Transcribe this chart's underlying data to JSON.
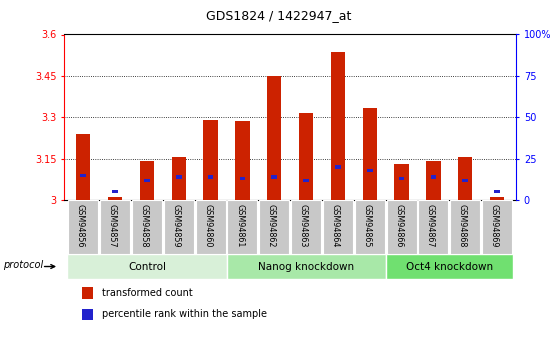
{
  "title": "GDS1824 / 1422947_at",
  "samples": [
    "GSM94856",
    "GSM94857",
    "GSM94858",
    "GSM94859",
    "GSM94860",
    "GSM94861",
    "GSM94862",
    "GSM94863",
    "GSM94864",
    "GSM94865",
    "GSM94866",
    "GSM94867",
    "GSM94868",
    "GSM94869"
  ],
  "transformed_count": [
    3.24,
    3.01,
    3.14,
    3.155,
    3.29,
    3.285,
    3.45,
    3.315,
    3.535,
    3.335,
    3.13,
    3.14,
    3.155,
    3.01
  ],
  "percentile_rank_pct": [
    15,
    5,
    12,
    14,
    14,
    13,
    14,
    12,
    20,
    18,
    13,
    14,
    12,
    5
  ],
  "bar_color_red": "#cc2200",
  "bar_color_blue": "#2222cc",
  "ylim_left": [
    3.0,
    3.6
  ],
  "ylim_right": [
    0,
    100
  ],
  "yticks_left": [
    3.0,
    3.15,
    3.3,
    3.45,
    3.6
  ],
  "yticks_right": [
    0,
    25,
    50,
    75,
    100
  ],
  "ytick_labels_left": [
    "3",
    "3.15",
    "3.3",
    "3.45",
    "3.6"
  ],
  "ytick_labels_right": [
    "0",
    "25",
    "50",
    "75",
    "100%"
  ],
  "groups": [
    {
      "label": "Control",
      "start": 0,
      "end": 4,
      "color": "#d8f0d8"
    },
    {
      "label": "Nanog knockdown",
      "start": 5,
      "end": 9,
      "color": "#a8e8a8"
    },
    {
      "label": "Oct4 knockdown",
      "start": 10,
      "end": 13,
      "color": "#70e070"
    }
  ],
  "protocol_label": "protocol",
  "legend_red": "transformed count",
  "legend_blue": "percentile rank within the sample",
  "bg_color": "#ffffff",
  "tick_label_bg": "#c8c8c8",
  "base_value": 3.0,
  "bar_width": 0.45,
  "blue_bar_width": 0.18,
  "blue_bar_height": 0.012
}
